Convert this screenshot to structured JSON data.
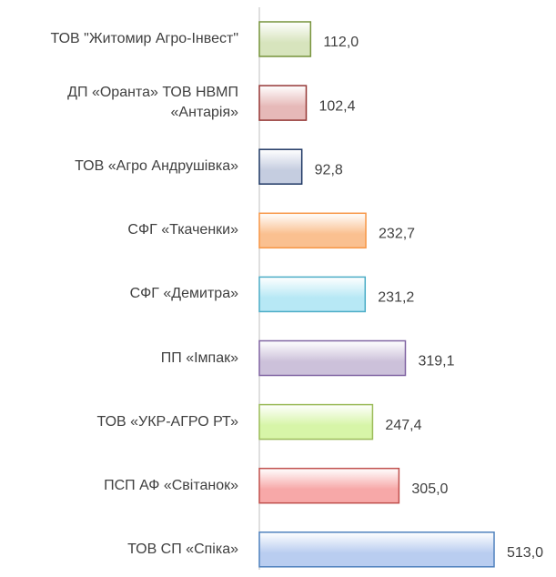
{
  "chart_data": {
    "type": "hbar",
    "categories": [
      "ТОВ \"Житомир Агро-Інвест\"",
      "ДП «Оранта» ТОВ НВМП «Антарія»",
      "ТОВ «Агро Андрушівка»",
      "СФГ «Ткаченки»",
      "СФГ «Демитра»",
      "ПП «Імпак»",
      "ТОВ «УКР-АГРО РТ»",
      "ПСП АФ «Світанок»",
      "ТОВ СП «Спіка»"
    ],
    "values": [
      112.0,
      102.4,
      92.8,
      232.7,
      231.2,
      319.1,
      247.4,
      305.0,
      513.0
    ],
    "value_labels": [
      "112,0",
      "102,4",
      "92,8",
      "232,7",
      "231,2",
      "319,1",
      "247,4",
      "305,0",
      "513,0"
    ],
    "colors": [
      "#d7e4bd",
      "#e6b9b8",
      "#c5cde0",
      "#fac090",
      "#b7e8f5",
      "#ccc1da",
      "#d7f5a8",
      "#f7a8a8",
      "#b9cdf0"
    ],
    "border_colors": [
      "#77933c",
      "#953735",
      "#1f3864",
      "#f79646",
      "#4bacc6",
      "#8064a2",
      "#9bbb59",
      "#c0504d",
      "#4f81bd"
    ]
  }
}
